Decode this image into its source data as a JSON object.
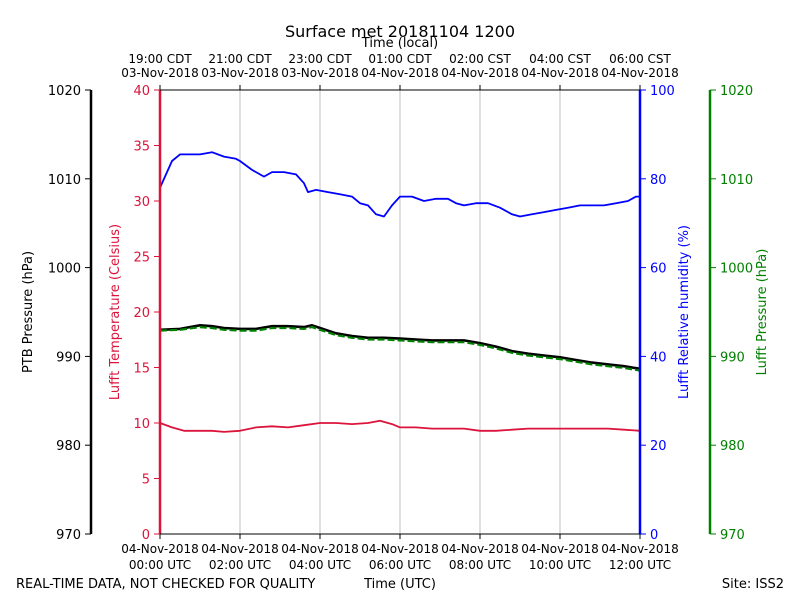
{
  "chart_data": {
    "type": "line",
    "title": "Surface met 20181104 1200",
    "top_axis_title": "Time (local)",
    "xlabel": "Time (UTC)",
    "footer_left": "REAL-TIME DATA, NOT CHECKED FOR QUALITY",
    "footer_right": "Site: ISS2",
    "xlim": [
      0,
      12
    ],
    "grid_x": true,
    "x_ticks": [
      0,
      2,
      4,
      6,
      8,
      10,
      12
    ],
    "x_tick_labels_bottom": [
      [
        "04-Nov-2018",
        "00:00 UTC"
      ],
      [
        "04-Nov-2018",
        "02:00 UTC"
      ],
      [
        "04-Nov-2018",
        "04:00 UTC"
      ],
      [
        "04-Nov-2018",
        "06:00 UTC"
      ],
      [
        "04-Nov-2018",
        "08:00 UTC"
      ],
      [
        "04-Nov-2018",
        "10:00 UTC"
      ],
      [
        "04-Nov-2018",
        "12:00 UTC"
      ]
    ],
    "x_tick_labels_top": [
      [
        "19:00 CDT",
        "03-Nov-2018"
      ],
      [
        "21:00 CDT",
        "03-Nov-2018"
      ],
      [
        "23:00 CDT",
        "03-Nov-2018"
      ],
      [
        "01:00 CDT",
        "04-Nov-2018"
      ],
      [
        "02:00 CST",
        "04-Nov-2018"
      ],
      [
        "04:00 CST",
        "04-Nov-2018"
      ],
      [
        "06:00 CST",
        "04-Nov-2018"
      ]
    ],
    "axes": [
      {
        "id": "ptb",
        "label": "PTB Pressure (hPa)",
        "color": "#000000",
        "ylim": [
          970,
          1020
        ],
        "ticks": [
          970,
          980,
          990,
          1000,
          1010,
          1020
        ]
      },
      {
        "id": "temp",
        "label": "Lufft Temperature (Celsius)",
        "color": "#dc143c",
        "ylim": [
          0,
          40
        ],
        "ticks": [
          0,
          5,
          10,
          15,
          20,
          25,
          30,
          35,
          40
        ]
      },
      {
        "id": "rh",
        "label": "Lufft Relative humidity (%)",
        "color": "#0000ff",
        "ylim": [
          0,
          100
        ],
        "ticks": [
          0,
          20,
          40,
          60,
          80,
          100
        ]
      },
      {
        "id": "lufftp",
        "label": "Lufft Pressure (hPa)",
        "color": "#008000",
        "ylim": [
          970,
          1020
        ],
        "ticks": [
          970,
          980,
          990,
          1000,
          1010,
          1020
        ]
      }
    ],
    "series": [
      {
        "name": "Lufft Relative humidity",
        "axis": "rh",
        "color": "#0000ff",
        "x": [
          0,
          0.15,
          0.3,
          0.5,
          0.8,
          1.0,
          1.3,
          1.6,
          1.9,
          2.0,
          2.3,
          2.6,
          2.8,
          3.1,
          3.4,
          3.6,
          3.7,
          3.9,
          4.2,
          4.5,
          4.8,
          5.0,
          5.2,
          5.4,
          5.6,
          5.8,
          6.0,
          6.3,
          6.6,
          6.9,
          7.2,
          7.4,
          7.6,
          7.9,
          8.2,
          8.5,
          8.8,
          9.0,
          9.3,
          9.6,
          9.9,
          10.2,
          10.5,
          10.8,
          11.1,
          11.4,
          11.7,
          11.9,
          12.0
        ],
        "values": [
          78,
          81,
          84,
          85.5,
          85.5,
          85.5,
          86,
          85,
          84.5,
          84,
          82,
          80.5,
          81.5,
          81.5,
          81,
          79,
          77,
          77.5,
          77,
          76.5,
          76,
          74.5,
          74,
          72,
          71.5,
          74,
          76,
          76,
          75,
          75.5,
          75.5,
          74.5,
          74,
          74.5,
          74.5,
          73.5,
          72,
          71.5,
          72,
          72.5,
          73,
          73.5,
          74,
          74,
          74,
          74.5,
          75,
          76,
          76
        ]
      },
      {
        "name": "PTB Pressure",
        "axis": "ptb",
        "color": "#000000",
        "x": [
          0,
          0.5,
          1.0,
          1.3,
          1.6,
          2.0,
          2.4,
          2.8,
          3.2,
          3.6,
          3.8,
          4.0,
          4.4,
          4.8,
          5.2,
          5.6,
          6.0,
          6.4,
          6.8,
          7.2,
          7.6,
          8.0,
          8.4,
          8.8,
          9.2,
          9.6,
          10.0,
          10.4,
          10.8,
          11.2,
          11.6,
          12.0
        ],
        "values": [
          993.0,
          993.1,
          993.5,
          993.4,
          993.2,
          993.1,
          993.1,
          993.4,
          993.4,
          993.3,
          993.5,
          993.2,
          992.6,
          992.3,
          992.1,
          992.1,
          992.0,
          991.9,
          991.8,
          991.8,
          991.8,
          991.5,
          991.1,
          990.6,
          990.3,
          990.1,
          989.9,
          989.6,
          989.3,
          989.1,
          988.9,
          988.6
        ]
      },
      {
        "name": "Lufft Pressure",
        "axis": "lufftp",
        "color": "#008000",
        "x": [
          0,
          0.5,
          1.0,
          1.3,
          1.6,
          2.0,
          2.4,
          2.8,
          3.2,
          3.6,
          3.8,
          4.0,
          4.4,
          4.8,
          5.2,
          5.6,
          6.0,
          6.4,
          6.8,
          7.2,
          7.6,
          8.0,
          8.4,
          8.8,
          9.2,
          9.6,
          10.0,
          10.4,
          10.8,
          11.2,
          11.6,
          12.0
        ],
        "values": [
          992.9,
          993.0,
          993.3,
          993.2,
          993.0,
          992.9,
          992.9,
          993.2,
          993.2,
          993.1,
          993.3,
          993.0,
          992.4,
          992.1,
          991.9,
          991.9,
          991.8,
          991.7,
          991.6,
          991.6,
          991.6,
          991.3,
          990.9,
          990.4,
          990.1,
          989.9,
          989.7,
          989.4,
          989.1,
          988.9,
          988.7,
          988.4
        ]
      },
      {
        "name": "Lufft Temperature",
        "axis": "temp",
        "color": "#dc143c",
        "x": [
          0,
          0.3,
          0.6,
          1.0,
          1.3,
          1.6,
          2.0,
          2.4,
          2.8,
          3.2,
          3.6,
          4.0,
          4.4,
          4.8,
          5.2,
          5.5,
          5.8,
          6.0,
          6.4,
          6.8,
          7.2,
          7.6,
          8.0,
          8.4,
          8.8,
          9.2,
          9.6,
          10.0,
          10.4,
          10.8,
          11.2,
          11.6,
          12.0
        ],
        "values": [
          10.0,
          9.6,
          9.3,
          9.3,
          9.3,
          9.2,
          9.3,
          9.6,
          9.7,
          9.6,
          9.8,
          10.0,
          10.0,
          9.9,
          10.0,
          10.2,
          9.9,
          9.6,
          9.6,
          9.5,
          9.5,
          9.5,
          9.3,
          9.3,
          9.4,
          9.5,
          9.5,
          9.5,
          9.5,
          9.5,
          9.5,
          9.4,
          9.3
        ]
      }
    ]
  }
}
